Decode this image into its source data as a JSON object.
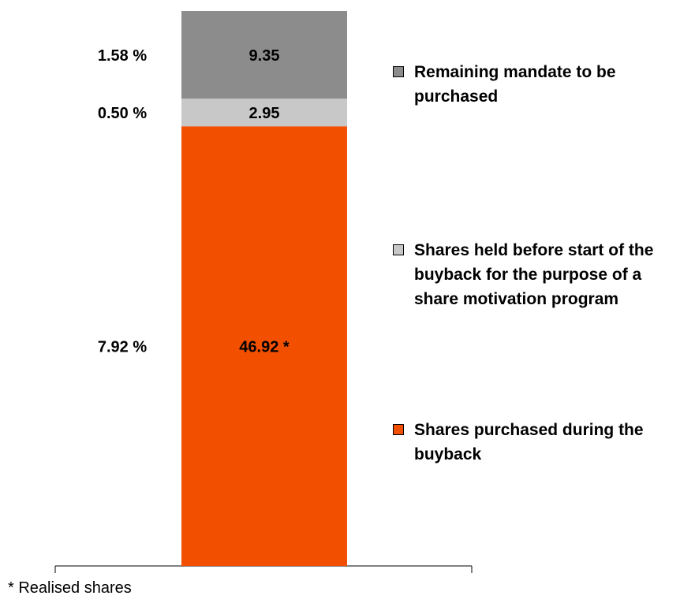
{
  "chart_data": {
    "type": "stacked_bar",
    "categories": [
      null
    ],
    "ylim": [
      0,
      59.22
    ],
    "series": [
      {
        "name": "Shares purchased during the buyback",
        "color": "#f25000",
        "values": [
          46.92
        ],
        "value_labels": [
          "46.92 *"
        ],
        "percent": [
          7.92
        ],
        "percent_labels": [
          "7.92 %"
        ]
      },
      {
        "name": "Shares held before start of the buyback for the purpose of a share motivation program",
        "color": "#c8c8c8",
        "values": [
          2.95
        ],
        "percent": [
          0.5
        ],
        "percent_labels": [
          "0.50 %"
        ]
      },
      {
        "name": "Remaining mandate to be purchased",
        "color": "#8c8c8c",
        "values": [
          9.35
        ],
        "percent": [
          1.58
        ],
        "percent_labels": [
          "1.58 %"
        ]
      }
    ],
    "footnote": "* Realised shares"
  }
}
